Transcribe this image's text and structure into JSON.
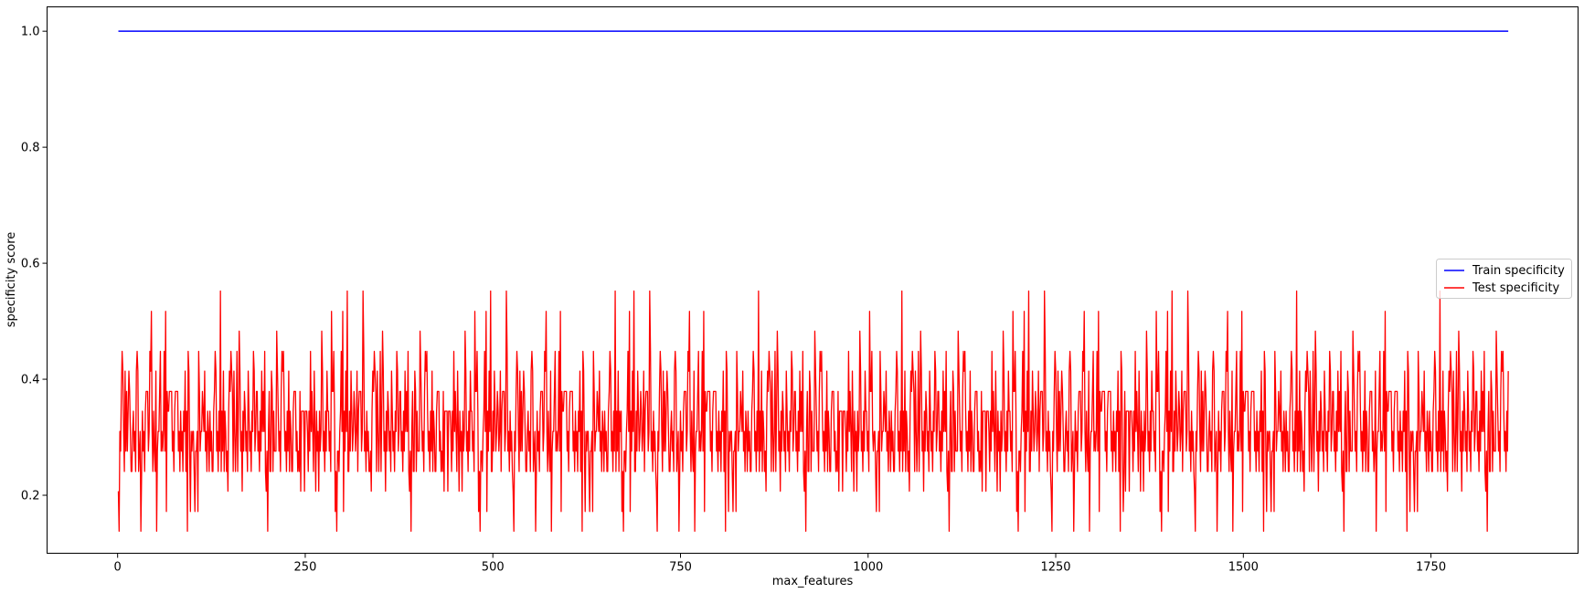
{
  "chart_data": {
    "type": "line",
    "title": "",
    "xlabel": "max_features",
    "ylabel": "specificity score",
    "xlim": [
      -94,
      1946
    ],
    "ylim": [
      0.1,
      1.042
    ],
    "xticks": [
      0,
      250,
      500,
      750,
      1000,
      1250,
      1500,
      1750
    ],
    "xtick_labels": [
      "0",
      "250",
      "500",
      "750",
      "1000",
      "1250",
      "1500",
      "1750"
    ],
    "yticks": [
      0.2,
      0.4,
      0.6,
      0.8,
      1.0
    ],
    "ytick_labels": [
      "0.2",
      "0.4",
      "0.6",
      "0.8",
      "1.0"
    ],
    "grid": false,
    "legend": {
      "position": "center-right",
      "entries": [
        "Train specificity",
        "Test specificity"
      ]
    },
    "series": [
      {
        "name": "Train specificity",
        "color": "#0000ff",
        "x_range": [
          1,
          1853
        ],
        "values": [
          1.0
        ],
        "note_constant": true
      },
      {
        "name": "Test specificity",
        "color": "#ff0000",
        "x_range": [
          1,
          1853
        ],
        "values_sample": [
          0.207,
          0.276,
          0.172,
          0.241,
          0.31,
          0.276,
          0.345,
          0.138,
          0.241,
          0.31,
          0.276,
          0.379,
          0.241,
          0.172,
          0.31,
          0.414,
          0.276,
          0.207,
          0.31,
          0.379,
          0.241,
          0.276,
          0.138,
          0.31,
          0.345,
          0.448,
          0.207,
          0.138,
          0.379,
          0.276,
          0.31,
          0.414,
          0.241,
          0.345,
          0.276,
          0.448,
          0.31,
          0.241,
          0.379,
          0.207,
          0.345,
          0.276,
          0.414,
          0.31,
          0.172,
          0.448,
          0.276,
          0.345,
          0.241,
          0.31,
          0.379,
          0.276,
          0.414,
          0.138,
          0.345,
          0.31,
          0.241,
          0.448,
          0.276,
          0.379,
          0.31,
          0.207,
          0.345,
          0.414,
          0.276,
          0.31,
          0.241,
          0.379,
          0.345,
          0.448,
          0.276,
          0.31,
          0.172,
          0.414,
          0.241,
          0.345,
          0.31,
          0.379,
          0.276,
          0.448,
          0.31,
          0.241,
          0.345,
          0.517,
          0.276,
          0.31,
          0.379,
          0.241,
          0.414,
          0.31,
          0.172,
          0.345,
          0.448,
          0.276,
          0.31,
          0.379,
          0.241,
          0.345,
          0.414,
          0.276,
          0.31,
          0.448,
          0.241,
          0.345,
          0.276,
          0.379,
          0.517,
          0.31,
          0.241,
          0.345,
          0.276,
          0.414,
          0.31,
          0.172,
          0.379,
          0.345,
          0.276,
          0.448,
          0.31,
          0.241,
          0.379,
          0.345,
          0.483,
          0.276,
          0.31,
          0.552,
          0.241,
          0.345,
          0.31,
          0.414,
          0.276,
          0.379,
          0.241,
          0.31,
          0.345,
          0.414,
          0.276,
          0.483,
          0.31,
          0.241,
          0.345,
          0.379,
          0.276,
          0.31,
          0.414,
          0.241,
          0.345,
          0.276,
          0.379,
          0.31,
          0.207,
          0.345,
          0.414,
          0.276,
          0.31,
          0.379,
          0.241,
          0.345,
          0.276,
          0.31,
          0.414,
          0.241,
          0.379,
          0.345,
          0.276,
          0.31,
          0.207,
          0.345,
          0.414,
          0.276,
          0.31,
          0.379,
          0.241,
          0.345,
          0.276,
          0.448,
          0.31,
          0.241,
          0.345,
          0.379,
          0.276,
          0.31,
          0.414,
          0.241,
          0.345,
          0.276,
          0.448,
          0.31,
          0.379,
          0.241,
          0.345,
          0.276,
          0.31,
          0.414,
          0.207,
          0.345,
          0.276,
          0.379,
          0.31,
          0.241,
          0.448,
          0.345,
          0.276,
          0.31,
          0.379,
          0.241,
          0.414,
          0.345,
          0.276,
          0.31,
          0.138,
          0.379,
          0.241,
          0.345,
          0.276,
          0.31,
          0.414,
          0.241,
          0.379,
          0.345,
          0.276,
          0.31,
          0.483,
          0.241,
          0.345,
          0.276,
          0.379,
          0.31,
          0.241,
          0.414,
          0.345,
          0.276,
          0.31,
          0.448,
          0.241,
          0.345,
          0.276,
          0.379,
          0.31,
          0.241,
          0.414,
          0.345,
          0.276,
          0.31,
          0.379,
          0.241,
          0.345,
          0.276,
          0.31,
          0.414,
          0.241,
          0.379,
          0.345,
          0.276,
          0.31,
          0.448,
          0.241,
          0.345,
          0.276,
          0.379,
          0.31,
          0.241,
          0.414,
          0.345,
          0.276,
          0.31,
          0.379,
          0.241,
          0.345,
          0.276,
          0.31,
          0.414,
          0.552,
          0.379,
          0.345,
          0.276,
          0.31,
          0.241,
          0.345,
          0.448,
          0.276,
          0.31,
          0.552,
          0.379,
          0.241,
          0.345,
          0.276,
          0.31,
          0.414,
          0.241,
          0.379,
          0.345,
          0.276,
          0.31,
          0.448,
          0.241,
          0.345,
          0.276,
          0.379,
          0.31,
          0.241,
          0.414,
          0.345,
          0.276,
          0.31,
          0.379,
          0.241,
          0.345,
          0.517,
          0.138,
          0.414,
          0.241,
          0.379,
          0.517,
          0.276,
          0.31,
          0.448,
          0.241,
          0.345,
          0.276,
          0.379,
          0.31,
          0.241,
          0.414,
          0.345,
          0.276,
          0.31,
          0.379,
          0.241,
          0.345,
          0.276,
          0.31,
          0.414,
          0.241,
          0.448
        ]
      }
    ]
  }
}
